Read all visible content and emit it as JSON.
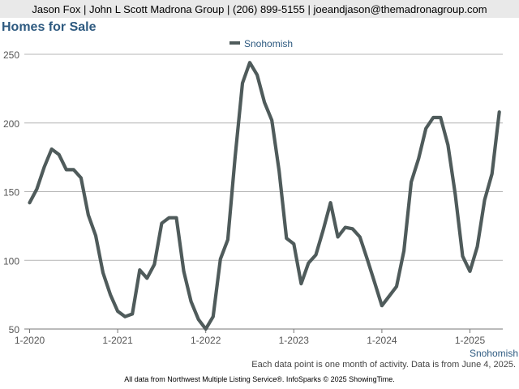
{
  "header": {
    "contact": "Jason Fox | John L Scott Madrona Group | (206) 899-5155 | joeandjason@themadronagroup.com"
  },
  "page_title": "Homes for Sale",
  "footer": {
    "note": "Each data point is one month of activity. Data is from June 4, 2025.",
    "credits": "All data from Northwest Multiple Listing Service®. InfoSparks © 2025 ShowingTime."
  },
  "colors": {
    "series": "#4f5b5b",
    "title": "#2e5a80",
    "grid": "#b4b4b4"
  },
  "chart_data": {
    "type": "line",
    "title": "",
    "xlabel": "",
    "ylabel": "",
    "ylim": [
      50,
      250
    ],
    "yticks": [
      50,
      100,
      150,
      200,
      250
    ],
    "xticks": [
      "1-2020",
      "1-2021",
      "1-2022",
      "1-2023",
      "1-2024",
      "1-2025"
    ],
    "x_start": "2020-01",
    "x_label_bottom_right": "Snohomish",
    "grid": true,
    "legend": "top-center",
    "series": [
      {
        "name": "Snohomish",
        "values": [
          142,
          152,
          168,
          181,
          177,
          166,
          166,
          160,
          133,
          118,
          91,
          75,
          63,
          59,
          61,
          93,
          87,
          97,
          127,
          131,
          131,
          92,
          70,
          57,
          50,
          59,
          101,
          115,
          175,
          229,
          244,
          235,
          215,
          202,
          165,
          116,
          112,
          83,
          98,
          104,
          122,
          142,
          117,
          124,
          123,
          117,
          101,
          84,
          67,
          74,
          81,
          107,
          157,
          174,
          196,
          204,
          204,
          184,
          148,
          103,
          92,
          110,
          144,
          163,
          208
        ]
      }
    ]
  }
}
